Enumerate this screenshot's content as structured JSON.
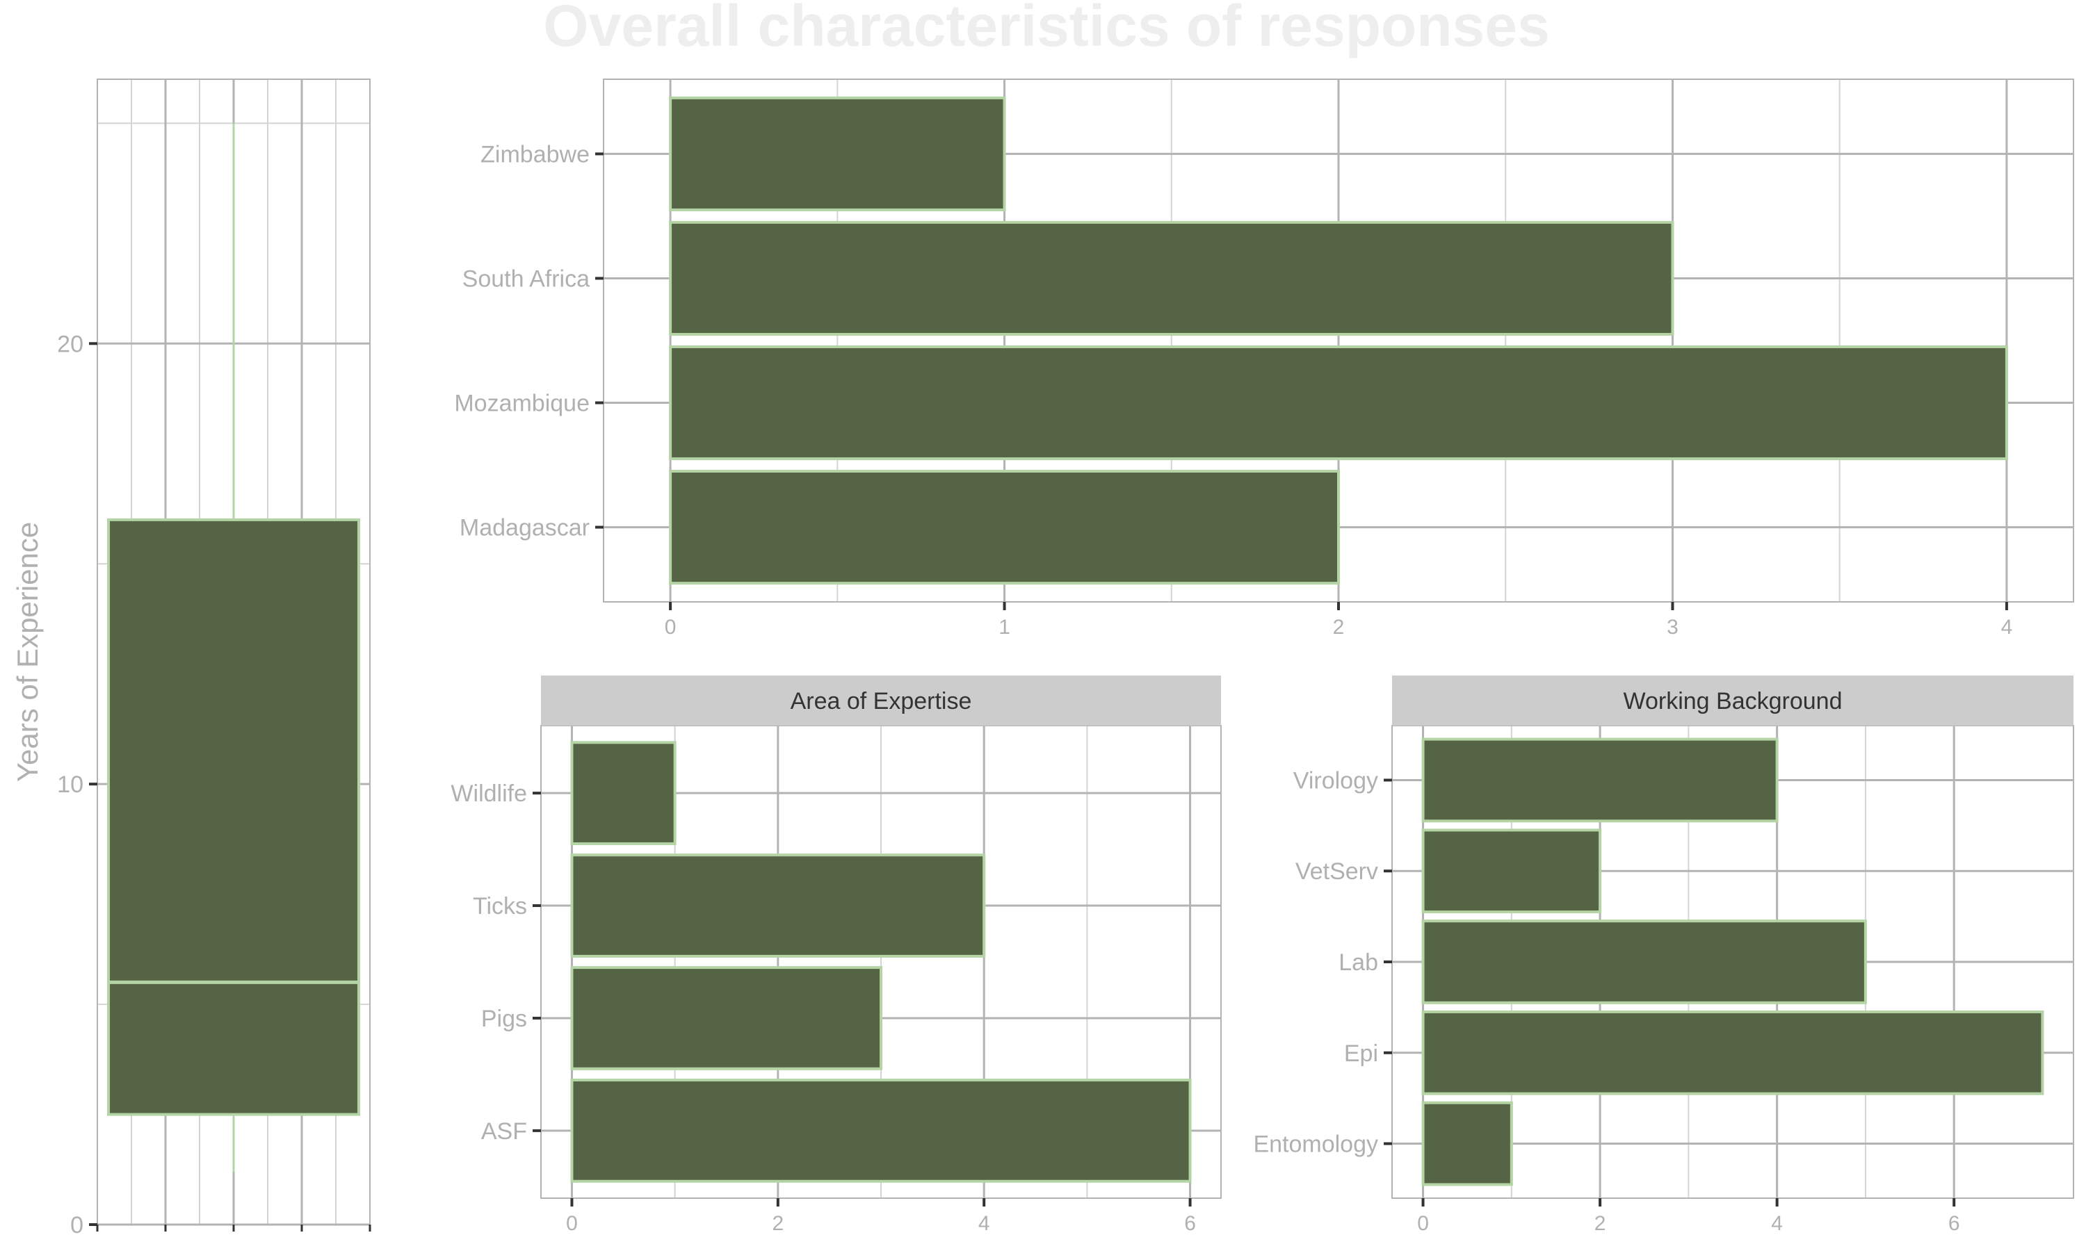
{
  "title": "Overall characteristics of responses",
  "colors": {
    "bar_fill": "#566446",
    "bar_outline": "#b5d4a5",
    "grid_major": "#b3b3b3",
    "grid_minor": "#d4d4d4",
    "strip_fill": "#cccccc",
    "strip_text": "#333333",
    "axis_text": "#b0b0b0",
    "title_text": "#eeeeee",
    "tick": "#333333"
  },
  "chart_data": [
    {
      "type": "boxplot",
      "ylabel": "Years of Experience",
      "ylim": [
        0,
        26
      ],
      "yticks": [
        0,
        10,
        20
      ],
      "ytick_labels": [
        "0",
        "10",
        "20"
      ],
      "box": {
        "min": 1.2,
        "q1": 2.5,
        "median": 5.5,
        "q3": 16,
        "max": 25
      }
    },
    {
      "type": "bar",
      "orientation": "horizontal",
      "categories": [
        "Madagascar",
        "Mozambique",
        "South Africa",
        "Zimbabwe"
      ],
      "values": [
        2,
        4,
        3,
        1
      ],
      "xlim": [
        -0.2,
        4.2
      ],
      "xticks": [
        0,
        1,
        2,
        3,
        4
      ],
      "xtick_labels": [
        "0",
        "1",
        "2",
        "3",
        "4"
      ]
    },
    {
      "type": "bar",
      "orientation": "horizontal",
      "strip": "Area of Expertise",
      "categories": [
        "ASF",
        "Pigs",
        "Ticks",
        "Wildlife"
      ],
      "values": [
        6,
        3,
        4,
        1
      ],
      "xlim": [
        -0.3,
        6.3
      ],
      "xticks": [
        0,
        2,
        4,
        6
      ],
      "xtick_labels": [
        "0",
        "2",
        "4",
        "6"
      ]
    },
    {
      "type": "bar",
      "orientation": "horizontal",
      "strip": "Working Background",
      "categories": [
        "Entomology",
        "Epi",
        "Lab",
        "VetServ",
        "Virology"
      ],
      "values": [
        1,
        7,
        5,
        2,
        4
      ],
      "xlim": [
        -0.35,
        7.35
      ],
      "xticks": [
        0,
        2,
        4,
        6
      ],
      "xtick_labels": [
        "0",
        "2",
        "4",
        "6"
      ]
    }
  ]
}
